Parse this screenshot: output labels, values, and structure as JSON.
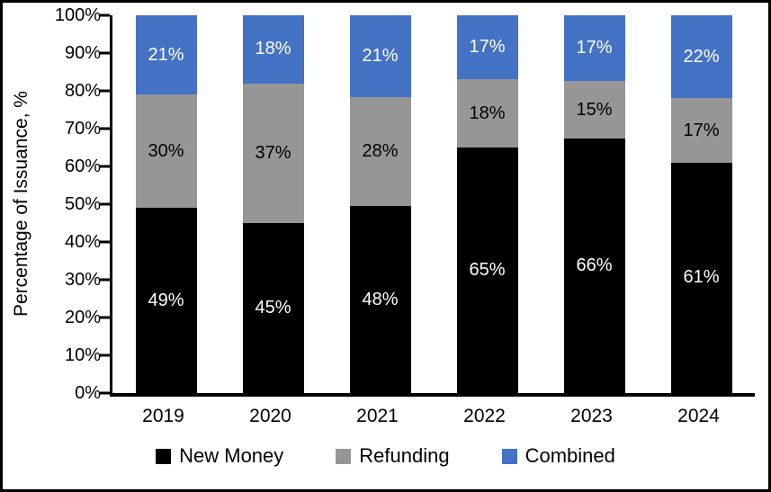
{
  "chart_data": {
    "type": "bar",
    "stacked": true,
    "normalize_to_100": true,
    "title": "",
    "xlabel": "",
    "ylabel": "Percentage of Issuance, %",
    "ylim": [
      0,
      100
    ],
    "grid": false,
    "legend_position": "bottom",
    "yticks": [
      "100%",
      "90%",
      "80%",
      "70%",
      "60%",
      "50%",
      "40%",
      "30%",
      "20%",
      "10%",
      "0%"
    ],
    "categories": [
      "2019",
      "2020",
      "2021",
      "2022",
      "2023",
      "2024"
    ],
    "series": [
      {
        "name": "New Money",
        "color": "#000000",
        "label_color": "#ffffff",
        "values": [
          49,
          45,
          48,
          65,
          66,
          61
        ]
      },
      {
        "name": "Refunding",
        "color": "#969696",
        "label_color": "#000000",
        "values": [
          30,
          37,
          28,
          18,
          15,
          17
        ]
      },
      {
        "name": "Combined",
        "color": "#4472c4",
        "label_color": "#ffffff",
        "values": [
          21,
          18,
          21,
          17,
          17,
          22
        ]
      }
    ],
    "data_label_suffix": "%",
    "colors": {
      "axis": "#000000",
      "background": "#ffffff",
      "frame_border": "#000000"
    }
  }
}
